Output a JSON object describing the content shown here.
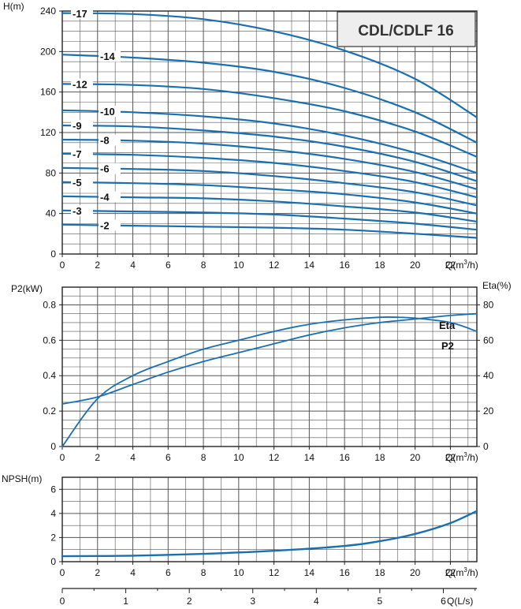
{
  "title": "CDL/CDLF 16",
  "colors": {
    "curve": "#1a6faf",
    "grid": "#555555",
    "text": "#111111",
    "title_box": "#eeeeee"
  },
  "chart_data": [
    {
      "id": "head",
      "type": "line",
      "ylabel": "H(m)",
      "xlabel": "Q(m³/h)",
      "xlim": [
        0,
        23.5
      ],
      "ylim": [
        0,
        240
      ],
      "xticks": [
        0,
        2,
        4,
        6,
        8,
        10,
        12,
        14,
        16,
        18,
        20,
        22
      ],
      "yticks": [
        0,
        40,
        80,
        120,
        160,
        200,
        240
      ],
      "grid": true,
      "x": [
        0,
        4,
        8,
        12,
        16,
        20,
        23.5
      ],
      "series": [
        {
          "name": "-17",
          "values": [
            238,
            237,
            232,
            220,
            201,
            173,
            135
          ]
        },
        {
          "name": "-14",
          "values": [
            197,
            194,
            189,
            180,
            164,
            140,
            110
          ]
        },
        {
          "name": "-12",
          "values": [
            168,
            167,
            163,
            154,
            141,
            121,
            96
          ]
        },
        {
          "name": "-10",
          "values": [
            142,
            140,
            136,
            129,
            117,
            100,
            80
          ]
        },
        {
          "name": "-9",
          "values": [
            127,
            126,
            122,
            116,
            106,
            91,
            72
          ]
        },
        {
          "name": "-8",
          "values": [
            113,
            112,
            109,
            103,
            94,
            81,
            64
          ]
        },
        {
          "name": "-7",
          "values": [
            99,
            98,
            95,
            90,
            82,
            71,
            56
          ]
        },
        {
          "name": "-6",
          "values": [
            85,
            84,
            82,
            77,
            70,
            61,
            48
          ]
        },
        {
          "name": "-5",
          "values": [
            71,
            70,
            68,
            64,
            59,
            51,
            40
          ]
        },
        {
          "name": "-4",
          "values": [
            57,
            56,
            55,
            52,
            47,
            41,
            32
          ]
        },
        {
          "name": "-3",
          "values": [
            43,
            42,
            41,
            39,
            35,
            30,
            24
          ]
        },
        {
          "name": "-2",
          "values": [
            29,
            28,
            27,
            26,
            24,
            20,
            16
          ]
        }
      ]
    },
    {
      "id": "power",
      "type": "line",
      "ylabel": "P2(kW)",
      "y2label": "Eta(%)",
      "xlabel": "Q(m³/h)",
      "xlim": [
        0,
        23.5
      ],
      "ylim": [
        0,
        0.9
      ],
      "y2lim": [
        0,
        90
      ],
      "xticks": [
        0,
        2,
        4,
        6,
        8,
        10,
        12,
        14,
        16,
        18,
        20,
        22
      ],
      "yticks": [
        "0",
        "0.2",
        "0.4",
        "0.6",
        "0.8"
      ],
      "y2ticks": [
        0,
        20,
        40,
        60,
        80
      ],
      "grid": true,
      "x": [
        0,
        2,
        4,
        6,
        8,
        10,
        12,
        14,
        16,
        18,
        19,
        20,
        22,
        23.5
      ],
      "series": [
        {
          "name": "Eta",
          "axis": "y2",
          "values": [
            0,
            27,
            40,
            48,
            55,
            60,
            65,
            69,
            71.5,
            73,
            73,
            72.5,
            70,
            65
          ]
        },
        {
          "name": "P2",
          "axis": "y",
          "values": [
            0.24,
            0.28,
            0.35,
            0.42,
            0.48,
            0.53,
            0.58,
            0.63,
            0.67,
            0.7,
            0.71,
            0.72,
            0.74,
            0.75
          ]
        }
      ]
    },
    {
      "id": "npsh",
      "type": "line",
      "ylabel": "NPSH(m)",
      "xlabel": "Q(m³/h)",
      "x2label": "Q(L/s)",
      "xlim": [
        0,
        23.5
      ],
      "ylim": [
        0,
        7
      ],
      "xticks": [
        0,
        2,
        4,
        6,
        8,
        10,
        12,
        14,
        16,
        18,
        20,
        22
      ],
      "yticks": [
        0,
        2,
        4,
        6
      ],
      "x2ticks": [
        0,
        1,
        2,
        3,
        4,
        5,
        6
      ],
      "grid": true,
      "x": [
        0,
        4,
        8,
        12,
        16,
        18,
        20,
        22,
        23.5
      ],
      "series": [
        {
          "name": "NPSH",
          "values": [
            0.45,
            0.5,
            0.65,
            0.9,
            1.3,
            1.7,
            2.3,
            3.2,
            4.2
          ]
        }
      ]
    }
  ]
}
